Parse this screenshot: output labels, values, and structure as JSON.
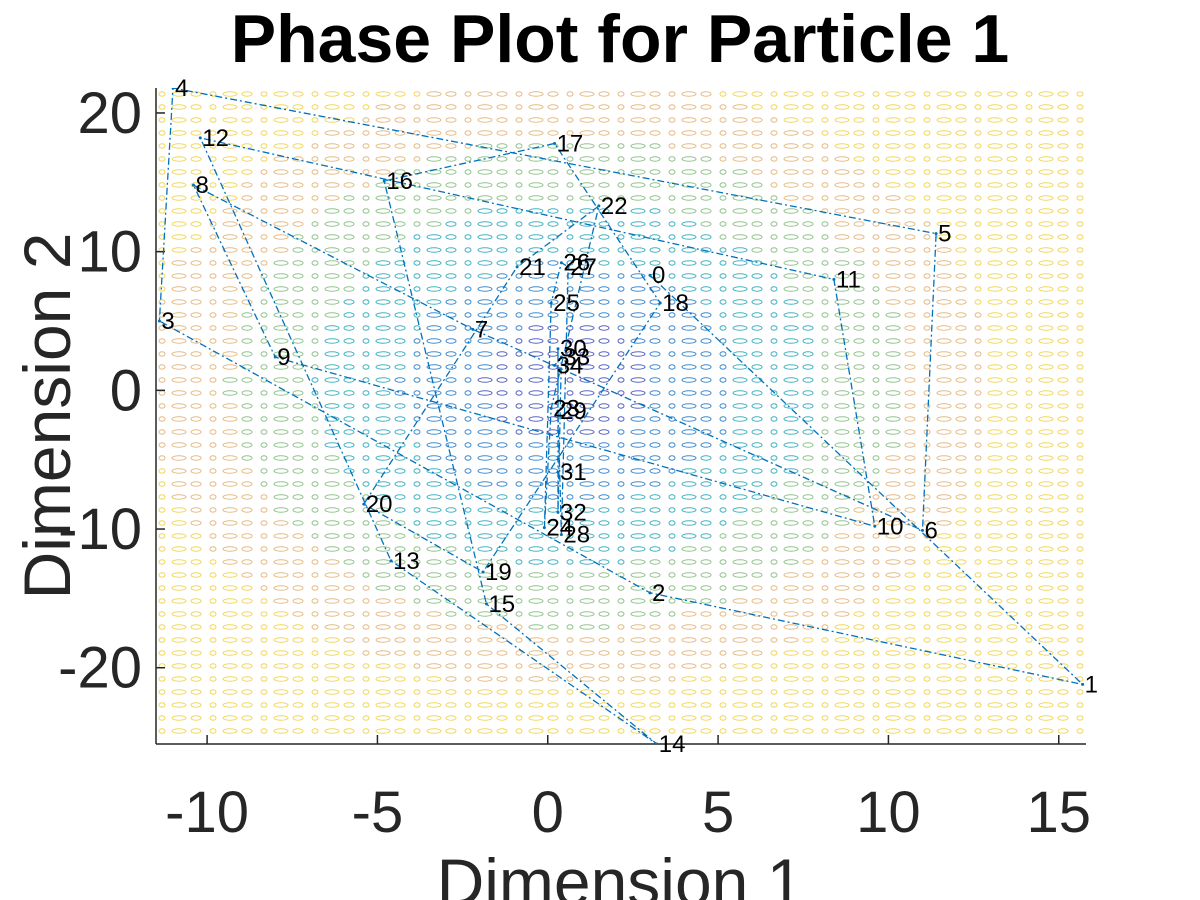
{
  "chart_data": {
    "type": "line",
    "title": "Phase Plot for Particle 1",
    "xlabel": "Dimension 1",
    "ylabel": "Dimension 2",
    "xlim": [
      -11.5,
      15.8
    ],
    "ylim": [
      -25.5,
      21.8
    ],
    "xticks": [
      -10,
      -5,
      0,
      5,
      10,
      15
    ],
    "yticks": [
      -20,
      -10,
      0,
      10,
      20
    ],
    "grid": false,
    "background": "contour",
    "contour_colors": [
      "#3b4ab8",
      "#1e78c8",
      "#22a6b8",
      "#7fba7a",
      "#e0b070",
      "#f0d040"
    ],
    "series": [
      {
        "line_style": "dash-dot",
        "color": "#0072BD",
        "labels": [
          "0",
          "1",
          "2",
          "3",
          "4",
          "5",
          "6",
          "7",
          "8",
          "9",
          "10",
          "11",
          "12",
          "13",
          "14",
          "15",
          "16",
          "17",
          "18",
          "19",
          "20",
          "21",
          "22",
          "23",
          "24",
          "25",
          "26",
          "27",
          "28",
          "29",
          "30",
          "31",
          "32",
          "33",
          "34"
        ],
        "x": [
          3.0,
          15.7,
          3.0,
          -11.4,
          -11.0,
          11.4,
          11.0,
          -2.2,
          -10.4,
          -8.0,
          9.6,
          8.4,
          -10.2,
          -4.6,
          3.2,
          -1.8,
          -4.8,
          0.2,
          3.3,
          -1.9,
          -5.4,
          -0.9,
          1.5,
          0.1,
          -0.1,
          0.1,
          0.4,
          0.6,
          0.4,
          0.3,
          0.3,
          0.3,
          0.3,
          0.4,
          0.2
        ],
        "y": [
          8.3,
          -21.2,
          -14.6,
          5.0,
          21.8,
          11.3,
          -10.1,
          4.4,
          14.8,
          2.4,
          -9.8,
          8.0,
          18.2,
          -12.3,
          -25.5,
          -15.4,
          15.1,
          17.8,
          6.3,
          -13.1,
          -8.2,
          8.9,
          13.3,
          -1.3,
          -9.9,
          6.3,
          9.2,
          8.9,
          -10.4,
          -1.5,
          3.0,
          -5.9,
          -8.8,
          2.4,
          1.8
        ]
      }
    ]
  }
}
